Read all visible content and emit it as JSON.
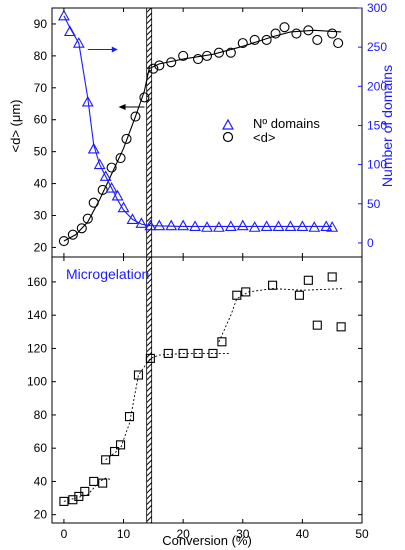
{
  "chart_data": [
    {
      "type": "line",
      "xlabel": "",
      "ylabel": "<d> (μm)",
      "ylabel_right": "Number of domains",
      "xlim": [
        -2,
        50
      ],
      "ylim": [
        17,
        95
      ],
      "ylim_right": [
        -18,
        300
      ],
      "xticks": [
        0,
        10,
        20,
        30,
        40,
        50
      ],
      "yticks": [
        20,
        30,
        40,
        50,
        60,
        70,
        80,
        90
      ],
      "yticks_right": [
        0,
        50,
        100,
        150,
        200,
        250,
        300
      ],
      "vertical_band_x": 14.3,
      "legend": {
        "position": "center-right",
        "entries": [
          "Nº domains",
          "<d>"
        ]
      },
      "series": [
        {
          "name": "<d>",
          "axis": "left",
          "marker": "circle",
          "color": "#000000",
          "x": [
            0,
            1.5,
            3,
            4,
            5,
            6.5,
            8,
            9.5,
            10.5,
            12,
            13.5,
            15,
            16,
            18,
            20,
            22.5,
            24,
            26,
            28,
            30,
            32,
            34,
            35.5,
            37,
            39,
            41,
            42.5,
            45,
            46
          ],
          "y": [
            22,
            24,
            26,
            29,
            34,
            38,
            45,
            48,
            54,
            61,
            67,
            76,
            77,
            78,
            80,
            79,
            80,
            81,
            81,
            84,
            85,
            85,
            87,
            89,
            87,
            88,
            85,
            87,
            84
          ]
        },
        {
          "name": "Nº domains",
          "axis": "right",
          "marker": "triangle",
          "color": "#1a1aff",
          "x": [
            0,
            1,
            2.5,
            4,
            5,
            6,
            7,
            8,
            9,
            10,
            11.5,
            13,
            14.5,
            16,
            18,
            20,
            22,
            24,
            26,
            28,
            30,
            32,
            34,
            36,
            38,
            40,
            42,
            44,
            45
          ],
          "y": [
            290,
            270,
            255,
            180,
            120,
            100,
            85,
            70,
            60,
            45,
            30,
            25,
            22,
            22,
            22,
            22,
            21,
            20,
            20,
            21,
            22,
            20,
            21,
            21,
            21,
            21,
            20,
            21,
            20
          ]
        }
      ]
    },
    {
      "type": "scatter",
      "xlabel": "Conversion (%)",
      "ylabel": "<d>32 (μm)",
      "xlim": [
        -2,
        50
      ],
      "ylim": [
        15,
        175
      ],
      "xticks": [
        0,
        10,
        20,
        30,
        40,
        50
      ],
      "yticks": [
        20,
        40,
        60,
        80,
        100,
        120,
        140,
        160
      ],
      "vertical_band_x": 14.3,
      "annotation": "Microgelation",
      "series": [
        {
          "name": "",
          "marker": "square",
          "color": "#000000",
          "x": [
            0,
            1.5,
            2.5,
            3.5,
            5,
            6.5,
            7,
            8.5,
            9.5,
            11,
            12.5,
            14.5,
            17.5,
            20,
            22.5,
            25,
            26.5,
            29,
            30.5,
            35,
            39.5,
            41,
            42.5,
            45,
            46.5
          ],
          "y": [
            28,
            29,
            31,
            34,
            40,
            39,
            53,
            58,
            62,
            79,
            104,
            114,
            117,
            117,
            117,
            117,
            124,
            152,
            154,
            158,
            152,
            161,
            134,
            163,
            133
          ]
        }
      ]
    }
  ]
}
